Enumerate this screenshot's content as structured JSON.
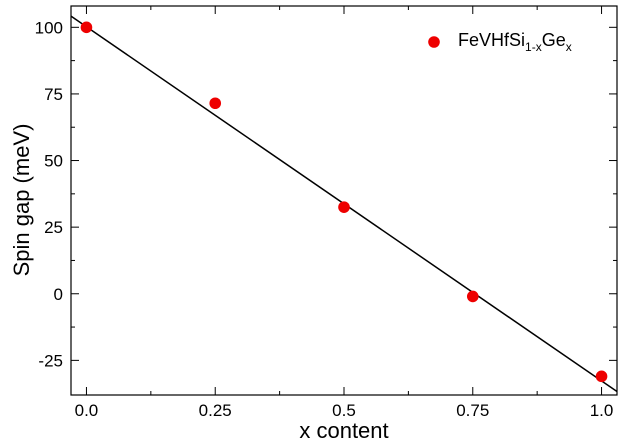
{
  "chart_data": {
    "type": "scatter",
    "xlabel": "x content",
    "ylabel": "Spin gap (meV)",
    "xlim": [
      -0.03,
      1.03
    ],
    "ylim": [
      -38,
      108
    ],
    "x_ticks": [
      0.0,
      0.25,
      0.5,
      0.75,
      1.0
    ],
    "x_tick_labels": [
      "0.0",
      "0.25",
      "0.5",
      "0.75",
      "1.0"
    ],
    "x_minor_ticks": [
      0.125,
      0.375,
      0.625,
      0.875
    ],
    "y_ticks": [
      -25,
      0,
      25,
      50,
      75,
      100
    ],
    "y_tick_labels": [
      "-25",
      "0",
      "25",
      "50",
      "75",
      "100"
    ],
    "y_minor_ticks": [
      -12.5,
      12.5,
      37.5,
      62.5,
      87.5
    ],
    "grid": false,
    "legend_position": "top-right",
    "series": [
      {
        "name": "FeVHfSi1-xGex",
        "legend_parts": {
          "base": "FeVHfSi",
          "sub1": "1-x",
          "mid": "Ge",
          "sub2": "x"
        },
        "color": "#ee0000",
        "x": [
          0.0,
          0.25,
          0.5,
          0.75,
          1.0
        ],
        "y": [
          100,
          71.5,
          32.5,
          -1,
          -31
        ]
      }
    ],
    "fit_line": {
      "color": "#000000",
      "x": [
        -0.03,
        1.03
      ],
      "y": [
        104.2,
        -36.7
      ]
    }
  }
}
